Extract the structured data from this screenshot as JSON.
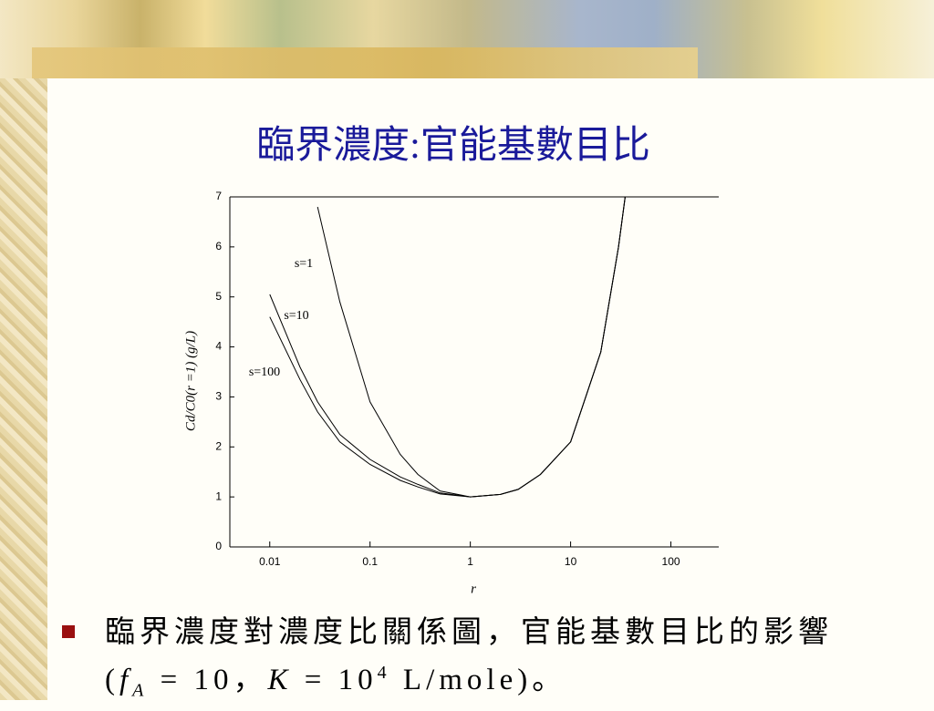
{
  "header": {
    "title": "臨界濃度:官能基數目比"
  },
  "chart_data": {
    "type": "line",
    "ylabel": "Cd/C0(r =1) (g/L)",
    "xlabel": "r",
    "log_x": true,
    "x": [
      0.01,
      0.02,
      0.03,
      0.05,
      0.1,
      0.2,
      0.3,
      0.5,
      1,
      2,
      3,
      5,
      10,
      20,
      30,
      35
    ],
    "series": [
      {
        "name": "s=1",
        "color": "#000000",
        "values": [
          null,
          null,
          6.8,
          4.9,
          2.9,
          1.85,
          1.45,
          1.12,
          1.0,
          1.05,
          1.15,
          1.45,
          2.1,
          3.9,
          6.0,
          7.0
        ]
      },
      {
        "name": "s=10",
        "color": "#000000",
        "values": [
          5.05,
          3.6,
          2.9,
          2.25,
          1.75,
          1.4,
          1.25,
          1.08,
          1.0,
          1.05,
          1.15,
          1.45,
          2.1,
          3.9,
          6.0,
          7.0
        ]
      },
      {
        "name": "s=100",
        "color": "#000000",
        "values": [
          4.6,
          3.35,
          2.7,
          2.1,
          1.65,
          1.33,
          1.2,
          1.06,
          1.0,
          1.05,
          1.15,
          1.45,
          2.1,
          3.9,
          6.0,
          7.0
        ]
      }
    ],
    "xlim": [
      0.004,
      300
    ],
    "xticks": [
      0.01,
      0.1,
      1,
      10,
      100
    ],
    "ylim": [
      0,
      7
    ],
    "yticks": [
      0,
      1,
      2,
      3,
      4,
      5,
      6,
      7
    ]
  },
  "bullet": [
    "臨界濃度對濃度比關係圖，官能基數目比的影響(",
    "f",
    "A",
    " = 10，",
    "K",
    " = 10",
    "4",
    " L/mole)。"
  ]
}
